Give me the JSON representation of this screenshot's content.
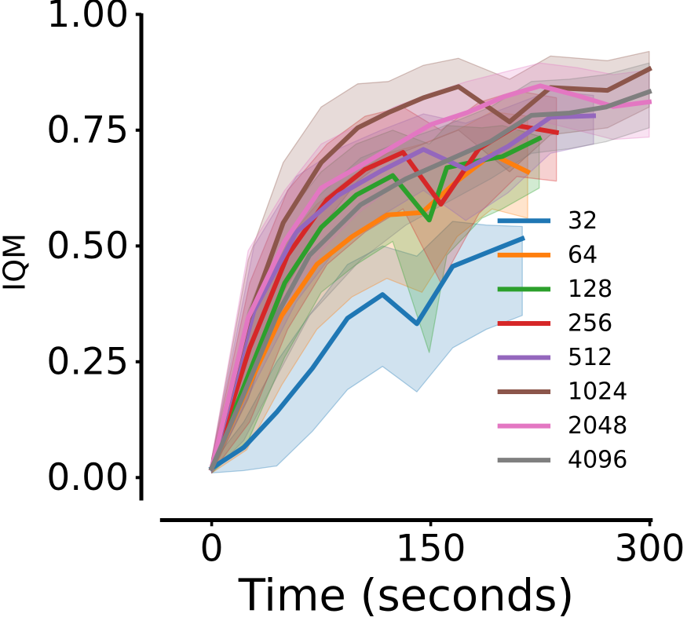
{
  "figure": {
    "background": "#ffffff",
    "text_color": "#000000"
  },
  "chart_data": {
    "type": "line",
    "title": "",
    "xlabel": "Time (seconds)",
    "ylabel": "IQM",
    "x_ticks": [
      0,
      150,
      300
    ],
    "x_tick_labels": [
      "0",
      "150",
      "300"
    ],
    "y_ticks": [
      0.0,
      0.25,
      0.5,
      0.75,
      1.0
    ],
    "y_tick_labels": [
      "0.00",
      "0.25",
      "0.50",
      "0.75",
      "1.00"
    ],
    "xlim": [
      -35,
      302
    ],
    "ylim": [
      -0.05,
      1.0
    ],
    "grid": false,
    "legend_position": "center right",
    "band_alpha": 0.21,
    "series": [
      {
        "name": "32",
        "color": "#1f77b4",
        "x": [
          0,
          22,
          44.5,
          69,
          93,
          117,
          140.5,
          165,
          188,
          212.7
        ],
        "y": [
          0.02,
          0.065,
          0.141,
          0.236,
          0.344,
          0.395,
          0.332,
          0.456,
          0.485,
          0.516
        ],
        "lo": [
          0.01,
          0.015,
          0.025,
          0.1,
          0.19,
          0.24,
          0.185,
          0.28,
          0.32,
          0.35
        ],
        "hi": [
          0.03,
          0.12,
          0.25,
          0.36,
          0.46,
          0.5,
          0.478,
          0.553,
          0.545,
          0.542
        ]
      },
      {
        "name": "64",
        "color": "#ff7f0e",
        "x": [
          0,
          24,
          48,
          72,
          96,
          120,
          144,
          168,
          192,
          216.4
        ],
        "y": [
          0.02,
          0.19,
          0.35,
          0.46,
          0.52,
          0.567,
          0.572,
          0.64,
          0.698,
          0.66
        ],
        "lo": [
          0.01,
          0.06,
          0.2,
          0.32,
          0.39,
          0.43,
          0.4,
          0.52,
          0.58,
          0.56
        ],
        "hi": [
          0.04,
          0.33,
          0.5,
          0.59,
          0.65,
          0.7,
          0.72,
          0.75,
          0.79,
          0.78
        ]
      },
      {
        "name": "128",
        "color": "#2ca02c",
        "x": [
          0,
          25,
          50,
          75,
          99,
          124,
          149,
          161,
          185,
          199,
          224.3
        ],
        "y": [
          0.02,
          0.22,
          0.42,
          0.54,
          0.61,
          0.652,
          0.556,
          0.669,
          0.685,
          0.693,
          0.732
        ],
        "lo": [
          0.01,
          0.08,
          0.26,
          0.4,
          0.46,
          0.51,
          0.27,
          0.48,
          0.56,
          0.58,
          0.625
        ],
        "hi": [
          0.04,
          0.36,
          0.56,
          0.66,
          0.72,
          0.75,
          0.72,
          0.76,
          0.755,
          0.76,
          0.737
        ]
      },
      {
        "name": "256",
        "color": "#d62728",
        "x": [
          0,
          26,
          52,
          79,
          105,
          131,
          157,
          183,
          209,
          236.1
        ],
        "y": [
          0.02,
          0.28,
          0.48,
          0.6,
          0.665,
          0.702,
          0.59,
          0.71,
          0.76,
          0.745
        ],
        "lo": [
          0.01,
          0.12,
          0.32,
          0.46,
          0.53,
          0.58,
          0.42,
          0.57,
          0.65,
          0.64
        ],
        "hi": [
          0.04,
          0.42,
          0.62,
          0.72,
          0.78,
          0.8,
          0.75,
          0.81,
          0.835,
          0.82
        ]
      },
      {
        "name": "512",
        "color": "#9467bd",
        "x": [
          0,
          29,
          58,
          87,
          116,
          145,
          174,
          203,
          232,
          261.5
        ],
        "y": [
          0.02,
          0.36,
          0.53,
          0.61,
          0.662,
          0.7085,
          0.666,
          0.715,
          0.778,
          0.781
        ],
        "lo": [
          0.01,
          0.2,
          0.38,
          0.5,
          0.565,
          0.62,
          0.555,
          0.615,
          0.7,
          0.72
        ],
        "hi": [
          0.04,
          0.5,
          0.65,
          0.71,
          0.75,
          0.785,
          0.765,
          0.8,
          0.835,
          0.825
        ]
      },
      {
        "name": "1024",
        "color": "#8c564b",
        "x": [
          0,
          25,
          49,
          75,
          100,
          121,
          145,
          169,
          204,
          232,
          271,
          299.6
        ],
        "y": [
          0.02,
          0.34,
          0.55,
          0.68,
          0.755,
          0.788,
          0.82,
          0.844,
          0.768,
          0.842,
          0.836,
          0.882
        ],
        "lo": [
          0.01,
          0.17,
          0.4,
          0.54,
          0.64,
          0.69,
          0.72,
          0.75,
          0.66,
          0.74,
          0.755,
          0.8
        ],
        "hi": [
          0.04,
          0.47,
          0.68,
          0.8,
          0.85,
          0.855,
          0.89,
          0.905,
          0.86,
          0.91,
          0.9,
          0.92
        ]
      },
      {
        "name": "2048",
        "color": "#e377c2",
        "x": [
          0,
          25,
          50,
          75,
          100,
          125,
          150,
          175,
          200,
          225,
          250,
          275,
          299.6
        ],
        "y": [
          0.02,
          0.345,
          0.51,
          0.625,
          0.67,
          0.716,
          0.762,
          0.788,
          0.822,
          0.8456,
          0.825,
          0.801,
          0.811
        ],
        "lo": [
          0.01,
          0.19,
          0.35,
          0.49,
          0.57,
          0.63,
          0.67,
          0.71,
          0.74,
          0.77,
          0.75,
          0.73,
          0.735
        ],
        "hi": [
          0.04,
          0.49,
          0.62,
          0.72,
          0.76,
          0.8,
          0.83,
          0.855,
          0.875,
          0.895,
          0.885,
          0.87,
          0.88
        ]
      },
      {
        "name": "4096",
        "color": "#7f7f7f",
        "x": [
          0,
          22,
          45,
          67,
          102,
          133,
          156,
          191,
          219,
          245,
          270,
          299.6
        ],
        "y": [
          0.02,
          0.18,
          0.353,
          0.48,
          0.589,
          0.645,
          0.677,
          0.726,
          0.782,
          0.787,
          0.8,
          0.833
        ],
        "lo": [
          0.01,
          0.08,
          0.22,
          0.35,
          0.47,
          0.545,
          0.585,
          0.645,
          0.7,
          0.71,
          0.725,
          0.755
        ],
        "hi": [
          0.04,
          0.3,
          0.48,
          0.59,
          0.69,
          0.73,
          0.755,
          0.8,
          0.855,
          0.86,
          0.87,
          0.895
        ]
      }
    ]
  }
}
